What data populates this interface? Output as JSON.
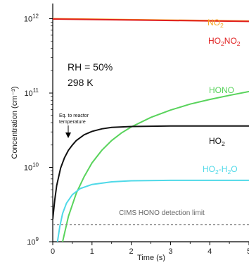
{
  "chart_data": {
    "type": "line",
    "xlabel": "Time (s)",
    "ylabel": "Concentration (cm⁻³)",
    "xlim": [
      0,
      5
    ],
    "ylim": [
      1000000000.0,
      1600000000000.0
    ],
    "y_scale": "log",
    "grid": false,
    "x_ticks": [
      {
        "value": 0,
        "label": "0"
      },
      {
        "value": 1,
        "label": "1"
      },
      {
        "value": 2,
        "label": "2"
      },
      {
        "value": 3,
        "label": "3"
      },
      {
        "value": 4,
        "label": "4"
      },
      {
        "value": 5,
        "label": "5"
      }
    ],
    "y_ticks": [
      {
        "value": 1000000000.0,
        "base": "10",
        "exp": "9"
      },
      {
        "value": 10000000000.0,
        "base": "10",
        "exp": "10"
      },
      {
        "value": 100000000000.0,
        "base": "10",
        "exp": "11"
      },
      {
        "value": 1000000000000.0,
        "base": "10",
        "exp": "12"
      }
    ],
    "series": [
      {
        "name": "NO2",
        "label_parts": [
          {
            "t": "NO"
          },
          {
            "t": "2",
            "sub": true
          }
        ],
        "color": "#f5a623",
        "points": [
          [
            0,
            1000000000000.0
          ],
          [
            5,
            930000000000.0
          ]
        ]
      },
      {
        "name": "HO2NO2",
        "label_parts": [
          {
            "t": "HO"
          },
          {
            "t": "2",
            "sub": true
          },
          {
            "t": "NO"
          },
          {
            "t": "2",
            "sub": true
          }
        ],
        "color": "#e02020",
        "points": [
          [
            0,
            990000000000.0
          ],
          [
            5,
            920000000000.0
          ]
        ]
      },
      {
        "name": "HONO",
        "label_parts": [
          {
            "t": "HONO"
          }
        ],
        "color": "#59d35c",
        "points": [
          [
            0.25,
            1000000000.0
          ],
          [
            0.4,
            2200000000.0
          ],
          [
            0.6,
            4500000000.0
          ],
          [
            0.8,
            7500000000.0
          ],
          [
            1.0,
            11500000000.0
          ],
          [
            1.25,
            17000000000.0
          ],
          [
            1.5,
            23000000000.0
          ],
          [
            1.75,
            29000000000.0
          ],
          [
            2.0,
            35000000000.0
          ],
          [
            2.5,
            47000000000.0
          ],
          [
            3.0,
            59000000000.0
          ],
          [
            3.5,
            71000000000.0
          ],
          [
            4.0,
            82000000000.0
          ],
          [
            4.5,
            93000000000.0
          ],
          [
            5.0,
            105000000000.0
          ]
        ]
      },
      {
        "name": "HO2",
        "label_parts": [
          {
            "t": "HO"
          },
          {
            "t": "2",
            "sub": true
          }
        ],
        "color": "#111111",
        "points": [
          [
            0,
            2000000000.0
          ],
          [
            0.05,
            3600000000.0
          ],
          [
            0.1,
            5700000000.0
          ],
          [
            0.2,
            9800000000.0
          ],
          [
            0.3,
            13500000000.0
          ],
          [
            0.4,
            17000000000.0
          ],
          [
            0.5,
            20000000000.0
          ],
          [
            0.6,
            23000000000.0
          ],
          [
            0.8,
            27500000000.0
          ],
          [
            1.0,
            30500000000.0
          ],
          [
            1.25,
            33000000000.0
          ],
          [
            1.5,
            34500000000.0
          ],
          [
            2.0,
            35500000000.0
          ],
          [
            3.0,
            36000000000.0
          ],
          [
            5.0,
            36000000000.0
          ]
        ]
      },
      {
        "name": "HO2-H2O",
        "label_parts": [
          {
            "t": "HO"
          },
          {
            "t": "2",
            "sub": true
          },
          {
            "t": "-H"
          },
          {
            "t": "2",
            "sub": true
          },
          {
            "t": "O"
          }
        ],
        "color": "#4fd9e8",
        "points": [
          [
            0.12,
            1000000000.0
          ],
          [
            0.18,
            1600000000.0
          ],
          [
            0.25,
            2400000000.0
          ],
          [
            0.35,
            3300000000.0
          ],
          [
            0.5,
            4300000000.0
          ],
          [
            0.7,
            5200000000.0
          ],
          [
            1.0,
            5900000000.0
          ],
          [
            1.5,
            6400000000.0
          ],
          [
            2.0,
            6600000000.0
          ],
          [
            3.0,
            6700000000.0
          ],
          [
            5.0,
            6700000000.0
          ]
        ]
      },
      {
        "name": "CIMS HONO detection limit",
        "color": "#888888",
        "dashed": true,
        "points": [
          [
            0,
            1700000000.0
          ],
          [
            5,
            1700000000.0
          ]
        ]
      }
    ],
    "annotations": {
      "rh": "RH = 50%",
      "temp": "298 K",
      "eq_line1": "Eq. to reactor",
      "eq_line2": "temperature",
      "detection_limit": "CIMS HONO detection limit"
    }
  }
}
